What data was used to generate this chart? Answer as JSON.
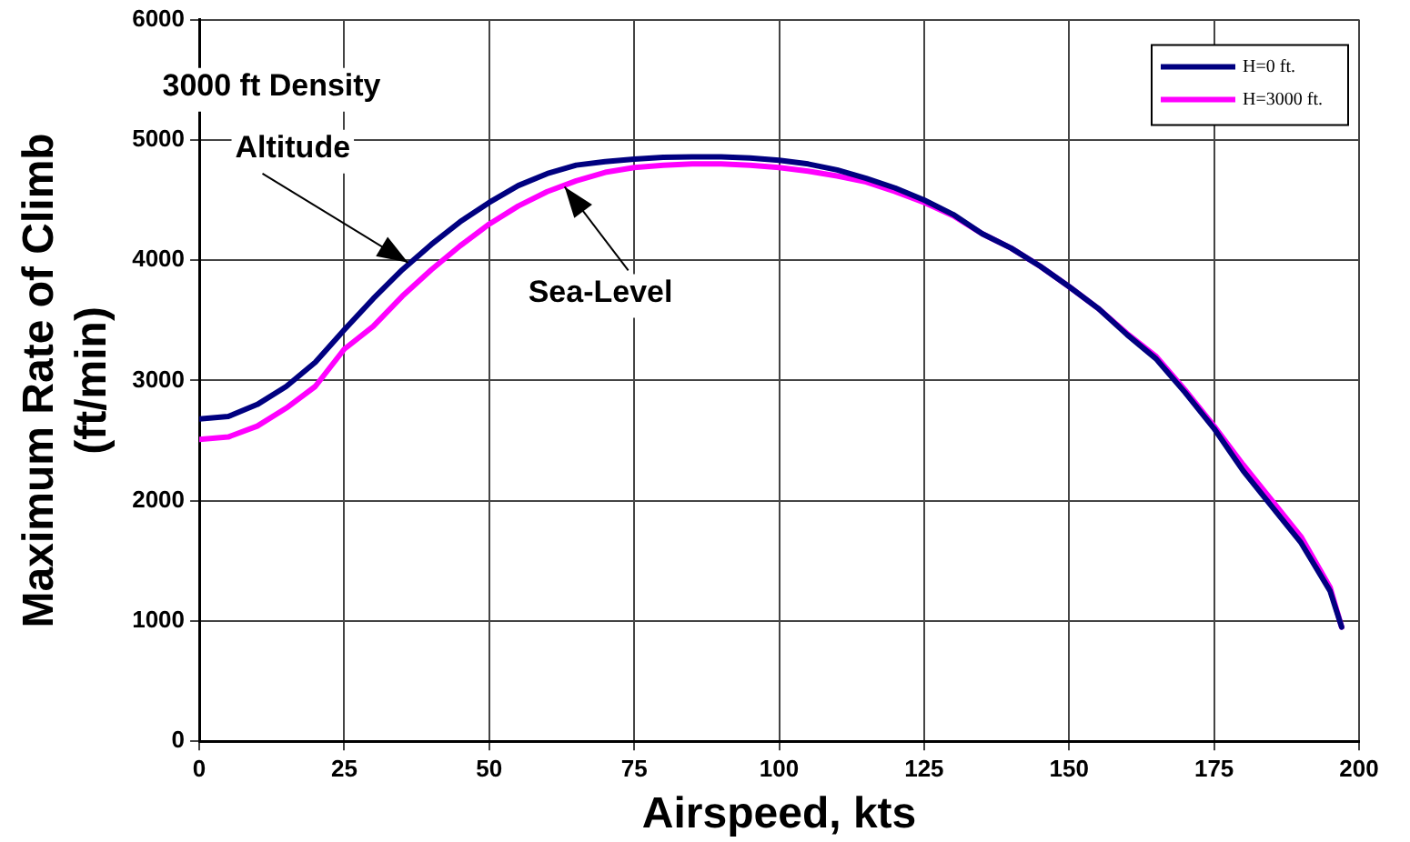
{
  "chart_data": {
    "type": "line",
    "xlabel": "Airspeed, kts",
    "ylabel": "Maximum Rate of Climb (ft/min)",
    "x": [
      0,
      5,
      10,
      15,
      20,
      25,
      30,
      35,
      40,
      45,
      50,
      55,
      60,
      65,
      70,
      75,
      80,
      85,
      90,
      95,
      100,
      105,
      110,
      115,
      120,
      125,
      130,
      135,
      140,
      145,
      150,
      155,
      160,
      165,
      170,
      175,
      180,
      185,
      190,
      195,
      197
    ],
    "series": [
      {
        "name": "H=0 ft.",
        "color": "#000080",
        "values": [
          2680,
          2700,
          2800,
          2950,
          3150,
          3420,
          3680,
          3920,
          4130,
          4320,
          4480,
          4620,
          4720,
          4790,
          4820,
          4840,
          4855,
          4860,
          4860,
          4850,
          4830,
          4800,
          4750,
          4680,
          4600,
          4500,
          4380,
          4220,
          4100,
          3950,
          3780,
          3600,
          3380,
          3180,
          2900,
          2600,
          2250,
          1950,
          1650,
          1250,
          950
        ]
      },
      {
        "name": "H=3000 ft.",
        "color": "#ff00ff",
        "values": [
          2510,
          2530,
          2620,
          2770,
          2950,
          3260,
          3450,
          3700,
          3920,
          4120,
          4300,
          4450,
          4570,
          4660,
          4730,
          4770,
          4790,
          4800,
          4800,
          4790,
          4770,
          4740,
          4700,
          4650,
          4570,
          4480,
          4370,
          4220,
          4100,
          3950,
          3780,
          3600,
          3390,
          3200,
          2920,
          2620,
          2300,
          2000,
          1700,
          1280,
          950
        ]
      }
    ],
    "xlim": [
      0,
      200
    ],
    "xticks": [
      0,
      25,
      50,
      75,
      100,
      125,
      150,
      175,
      200
    ],
    "ylim": [
      0,
      6000
    ],
    "yticks": [
      0,
      1000,
      2000,
      3000,
      4000,
      5000,
      6000
    ],
    "grid": true,
    "legend": "top right",
    "marker": "none",
    "line_style": "solid",
    "annotations": [
      {
        "text": "3000 ft Density Altitude",
        "x": 36,
        "y": 3980
      },
      {
        "text": "Sea-Level",
        "x": 63,
        "y": 4610
      }
    ]
  }
}
